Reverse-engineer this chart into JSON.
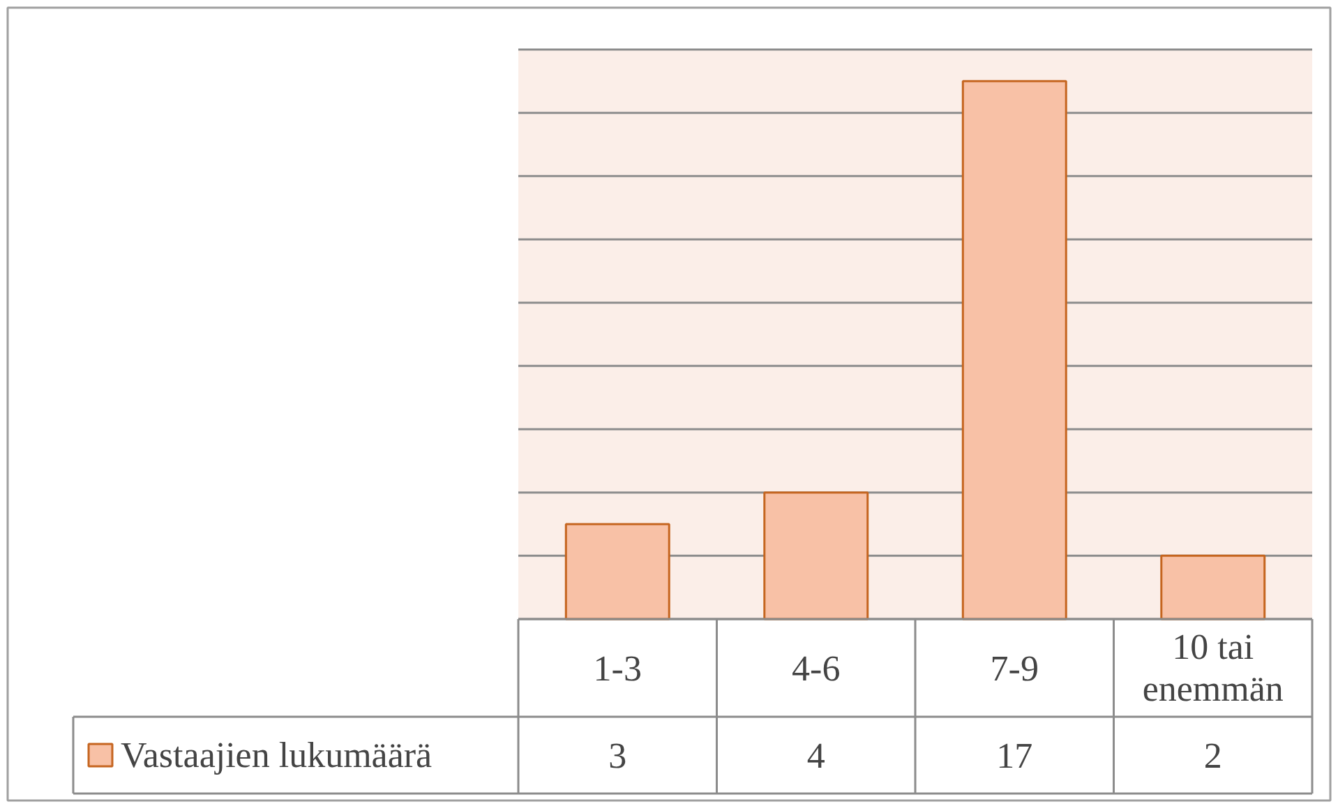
{
  "chart_data": {
    "type": "bar",
    "categories": [
      "1-3",
      "4-6",
      "7-9",
      "10 tai enemmän"
    ],
    "series": [
      {
        "name": "Vastaajien lukumäärä",
        "color": "#f8c1a6",
        "values": [
          3,
          4,
          17,
          2
        ]
      }
    ],
    "ylim": [
      0,
      18
    ],
    "yticks": [
      {
        "value": 0,
        "label": null
      },
      {
        "value": 2,
        "label": null
      },
      {
        "value": 4,
        "label": null
      },
      {
        "value": 6,
        "label": null
      },
      {
        "value": 8,
        "label": null
      },
      {
        "value": 10,
        "label": null
      },
      {
        "value": 12,
        "label": null
      },
      {
        "value": 14,
        "label": null
      },
      {
        "value": 16,
        "label": null
      },
      {
        "value": 18,
        "label": null
      }
    ],
    "grid": "y",
    "data_labels": true,
    "legend": "bottom left",
    "tick_labels": "x"
  }
}
